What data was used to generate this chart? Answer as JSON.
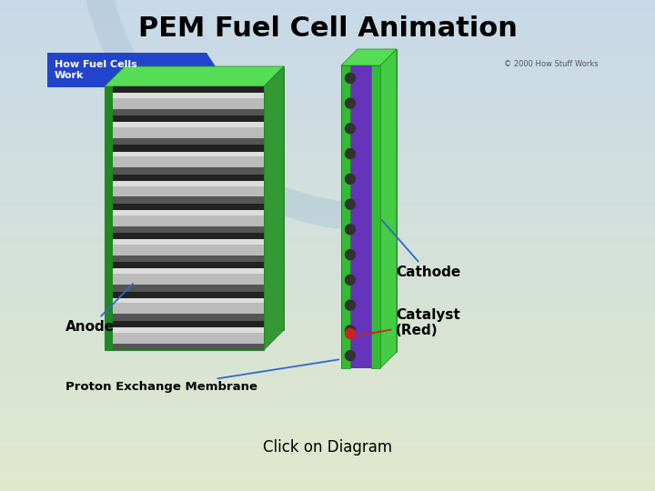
{
  "title": "PEM Fuel Cell Animation",
  "subtitle": "Click on Diagram",
  "title_fontsize": 22,
  "subtitle_fontsize": 12,
  "header_text": "How Fuel Cells\nWork",
  "copyright_text": "© 2000 How Stuff Works",
  "anode_label": "Anode",
  "membrane_label": "Proton Exchange Membrane",
  "cathode_label": "Cathode",
  "catalyst_label": "Catalyst\n(Red)",
  "green_color": "#33bb33",
  "dark_green": "#228822",
  "light_green": "#55dd55",
  "purple_color": "#6633bb",
  "dark_gray": "#333333",
  "light_gray": "#cccccc",
  "white": "#ffffff",
  "red_color": "#cc2222",
  "blue_arrow": "#3366cc",
  "red_arrow": "#cc2222",
  "header_bg": "#2244cc",
  "image_bg": "#f5f3ee",
  "image_border": "#bbbbbb"
}
